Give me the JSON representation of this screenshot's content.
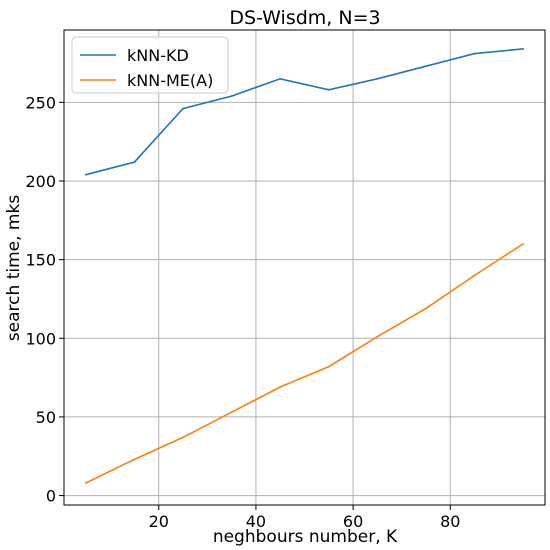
{
  "chart_data": {
    "type": "line",
    "title": "DS-Wisdm, N=3",
    "xlabel": "neghbours number, K",
    "ylabel": "search time, mks",
    "xlim": [
      0.5,
      99.5
    ],
    "ylim": [
      -6,
      296
    ],
    "x_ticks": [
      20,
      40,
      60,
      80
    ],
    "y_ticks": [
      0,
      50,
      100,
      150,
      200,
      250
    ],
    "grid": true,
    "legend_position": "top-left",
    "x": [
      5,
      15,
      25,
      35,
      45,
      55,
      65,
      75,
      85,
      95
    ],
    "series": [
      {
        "name": "kNN-KD",
        "color": "#1f77b4",
        "values": [
          204,
          212,
          246,
          254,
          265,
          258,
          265,
          273,
          281,
          284
        ]
      },
      {
        "name": "kNN-ME(A)",
        "color": "#ff7f0e",
        "values": [
          8,
          23,
          37,
          53,
          69,
          82,
          101,
          119,
          140,
          160
        ]
      }
    ]
  }
}
